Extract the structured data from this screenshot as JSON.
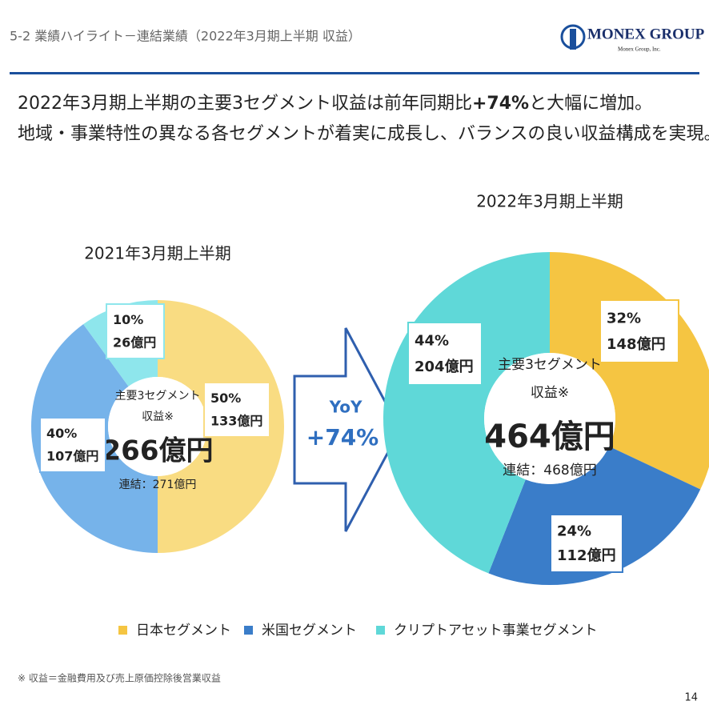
{
  "header": {
    "title": "5-2  業績ハイライト－連結業績（2022年3月期上半期  収益）",
    "logo": "MONEX GROUP",
    "logo_sub": "Monex Group, Inc."
  },
  "headline": {
    "line1_a": "2022年3月期上半期の主要3セグメント収益は前年同期比",
    "line1_b": "+74%",
    "line1_c": "と大幅に増加。",
    "line2": "地域・事業特性の異なる各セグメントが着実に成長し、バランスの良い収益構成を実現。"
  },
  "legend": {
    "items": [
      {
        "name": "日本セグメント",
        "color": "#f5c542"
      },
      {
        "name": "米国セグメント",
        "color": "#3a7dc9"
      },
      {
        "name": "クリプトアセット事業セグメント",
        "color": "#5fd8d8"
      }
    ]
  },
  "chart_data": [
    {
      "type": "pie",
      "title": "2021年3月期上半期",
      "values": [
        50,
        40,
        10
      ],
      "value_labels": [
        "50%",
        "40%",
        "10%"
      ],
      "amounts": [
        133,
        107,
        26
      ],
      "amount_labels": [
        "133億円",
        "107億円",
        "26億円"
      ],
      "colors": [
        "#f9dc82",
        "#76b3ea",
        "#8ee6ec"
      ],
      "center": {
        "line1": "主要3セグメント",
        "line2": "収益※",
        "total": "266億円",
        "consolidated": "連結：271億円"
      }
    },
    {
      "type": "pie",
      "title": "2022年3月期上半期",
      "values": [
        32,
        24,
        44
      ],
      "value_labels": [
        "32%",
        "24%",
        "44%"
      ],
      "amounts": [
        148,
        112,
        204
      ],
      "amount_labels": [
        "148億円",
        "112億円",
        "204億円"
      ],
      "colors": [
        "#f5c542",
        "#3a7dc9",
        "#5fd8d8"
      ],
      "center": {
        "line1": "主要3セグメント",
        "line2": "収益※",
        "total": "464億円",
        "consolidated": "連結：468億円"
      }
    }
  ],
  "arrow": {
    "line1": "YoY",
    "line2": "+74%"
  },
  "footnote": "※ 収益＝金融費用及び売上原価控除後営業収益",
  "page_number": "14"
}
